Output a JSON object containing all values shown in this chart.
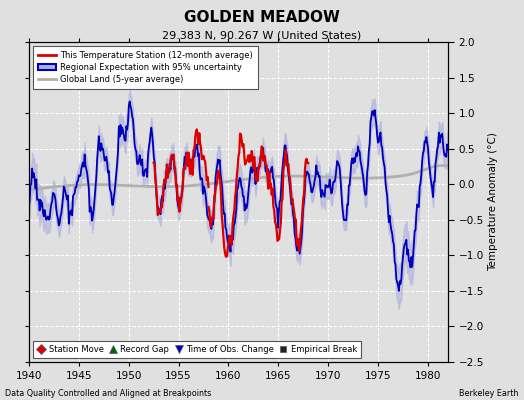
{
  "title": "GOLDEN MEADOW",
  "subtitle": "29.383 N, 90.267 W (United States)",
  "ylabel": "Temperature Anomaly (°C)",
  "xlabel_bottom_left": "Data Quality Controlled and Aligned at Breakpoints",
  "xlabel_bottom_right": "Berkeley Earth",
  "xlim": [
    1940,
    1982
  ],
  "ylim": [
    -2.5,
    2.0
  ],
  "yticks": [
    -2.5,
    -2.0,
    -1.5,
    -1.0,
    -0.5,
    0.0,
    0.5,
    1.0,
    1.5,
    2.0
  ],
  "xticks": [
    1940,
    1945,
    1950,
    1955,
    1960,
    1965,
    1970,
    1975,
    1980
  ],
  "bg_color": "#e0e0e0",
  "plot_bg_color": "#e0e0e0",
  "grid_color": "#ffffff",
  "blue_line_color": "#0000bb",
  "blue_fill_color": "#b0b0dd",
  "red_line_color": "#dd0000",
  "gray_line_color": "#b0b0b0",
  "legend1_labels": [
    "This Temperature Station (12-month average)",
    "Regional Expectation with 95% uncertainty",
    "Global Land (5-year average)"
  ],
  "legend2_labels": [
    "Station Move",
    "Record Gap",
    "Time of Obs. Change",
    "Empirical Break"
  ],
  "legend2_markers": [
    "D",
    "^",
    "v",
    "s"
  ],
  "legend2_colors": [
    "#dd0000",
    "#006600",
    "#0000bb",
    "#222222"
  ]
}
